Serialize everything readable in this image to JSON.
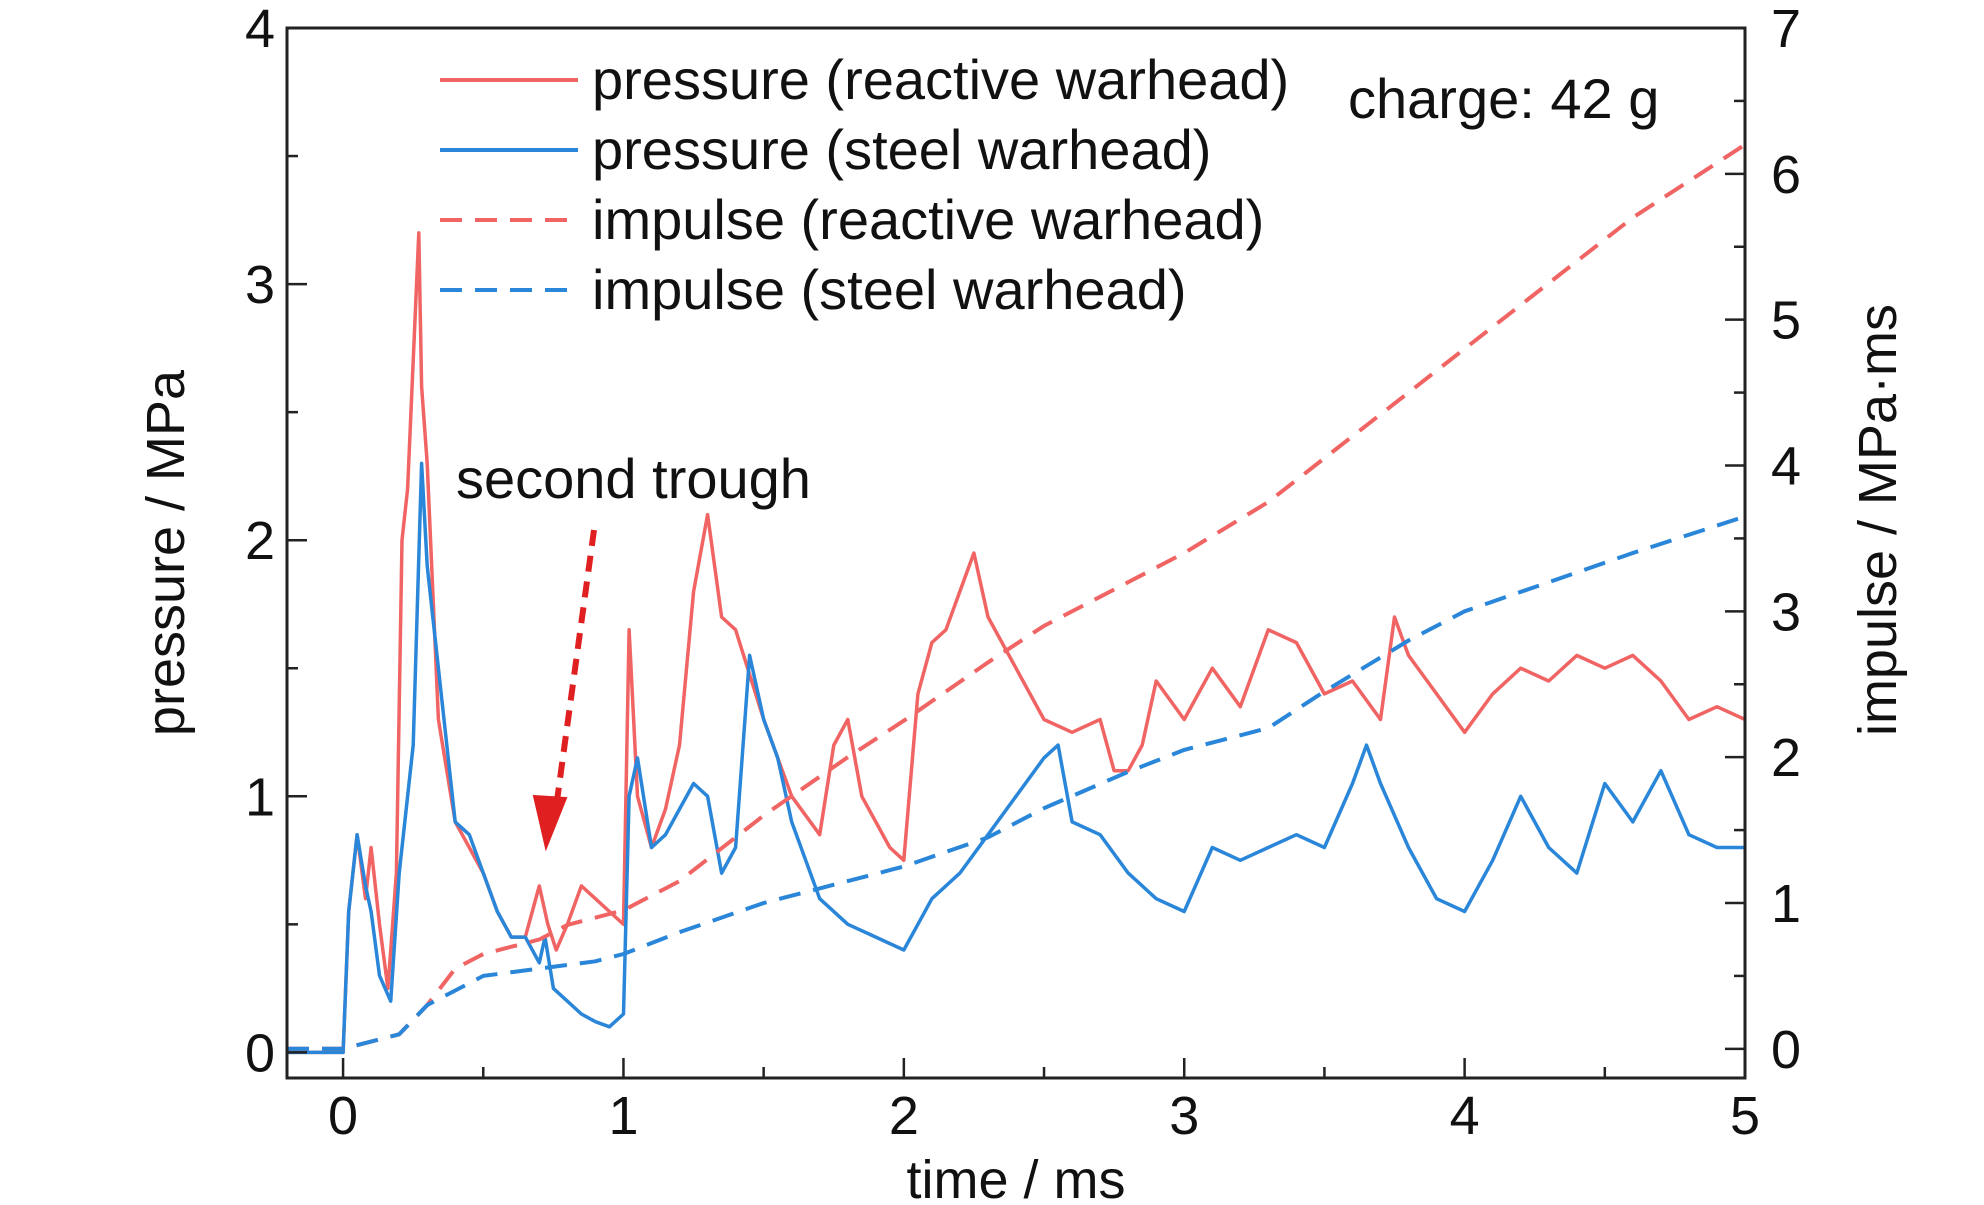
{
  "chart_data": {
    "type": "line",
    "annotation_charge": "charge: 42 g",
    "annotation_trough": "second trough",
    "xlabel": "time / ms",
    "ylabel_left": "pressure / MPa",
    "ylabel_right": "impulse / MPa·ms",
    "xlim": [
      -0.2,
      5
    ],
    "ylim_left": [
      -0.1,
      4
    ],
    "ylim_right": [
      -0.2,
      7
    ],
    "x_ticks": [
      "0",
      "1",
      "2",
      "3",
      "4",
      "5"
    ],
    "y_ticks_left": [
      "0",
      "1",
      "2",
      "3",
      "4"
    ],
    "y_ticks_right": [
      "0",
      "1",
      "2",
      "3",
      "4",
      "5",
      "6",
      "7"
    ],
    "legend": [
      "pressure (reactive warhead)",
      "pressure (steel warhead)",
      "impulse (reactive warhead)",
      "impulse (steel warhead)"
    ],
    "colors": {
      "reactive": "#f06464",
      "steel": "#2a86d8",
      "arrow": "#e02020"
    },
    "series": [
      {
        "name": "pressure (reactive warhead)",
        "axis": "left",
        "style": "solid",
        "x": [
          -0.2,
          0,
          0.02,
          0.05,
          0.08,
          0.1,
          0.13,
          0.16,
          0.19,
          0.21,
          0.23,
          0.25,
          0.27,
          0.28,
          0.3,
          0.32,
          0.34,
          0.37,
          0.4,
          0.45,
          0.5,
          0.55,
          0.6,
          0.65,
          0.7,
          0.73,
          0.76,
          0.8,
          0.85,
          0.9,
          0.95,
          1.0,
          1.02,
          1.05,
          1.1,
          1.15,
          1.2,
          1.25,
          1.3,
          1.35,
          1.4,
          1.5,
          1.6,
          1.7,
          1.75,
          1.8,
          1.85,
          1.9,
          1.95,
          2.0,
          2.05,
          2.1,
          2.15,
          2.2,
          2.25,
          2.3,
          2.4,
          2.5,
          2.6,
          2.7,
          2.75,
          2.8,
          2.85,
          2.9,
          3.0,
          3.1,
          3.2,
          3.3,
          3.4,
          3.5,
          3.6,
          3.7,
          3.75,
          3.8,
          3.9,
          4.0,
          4.1,
          4.2,
          4.3,
          4.4,
          4.5,
          4.6,
          4.7,
          4.8,
          4.9,
          5.0
        ],
        "y": [
          0.0,
          0.0,
          0.55,
          0.85,
          0.6,
          0.8,
          0.5,
          0.25,
          0.7,
          2.0,
          2.2,
          2.7,
          3.2,
          2.6,
          2.3,
          1.8,
          1.3,
          1.1,
          0.9,
          0.8,
          0.7,
          0.55,
          0.45,
          0.45,
          0.65,
          0.5,
          0.4,
          0.5,
          0.65,
          0.6,
          0.55,
          0.5,
          1.65,
          1.0,
          0.8,
          0.95,
          1.2,
          1.8,
          2.1,
          1.7,
          1.65,
          1.3,
          1.0,
          0.85,
          1.2,
          1.3,
          1.0,
          0.9,
          0.8,
          0.75,
          1.4,
          1.6,
          1.65,
          1.8,
          1.95,
          1.7,
          1.5,
          1.3,
          1.25,
          1.3,
          1.1,
          1.1,
          1.2,
          1.45,
          1.3,
          1.5,
          1.35,
          1.65,
          1.6,
          1.4,
          1.45,
          1.3,
          1.7,
          1.55,
          1.4,
          1.25,
          1.4,
          1.5,
          1.45,
          1.55,
          1.5,
          1.55,
          1.45,
          1.3,
          1.35,
          1.3
        ]
      },
      {
        "name": "pressure (steel warhead)",
        "axis": "left",
        "style": "solid",
        "x": [
          -0.2,
          0,
          0.02,
          0.05,
          0.08,
          0.1,
          0.13,
          0.17,
          0.2,
          0.22,
          0.25,
          0.28,
          0.3,
          0.32,
          0.34,
          0.37,
          0.4,
          0.45,
          0.5,
          0.55,
          0.6,
          0.65,
          0.7,
          0.72,
          0.75,
          0.8,
          0.85,
          0.9,
          0.95,
          1.0,
          1.02,
          1.05,
          1.1,
          1.15,
          1.2,
          1.25,
          1.3,
          1.35,
          1.4,
          1.45,
          1.5,
          1.55,
          1.6,
          1.65,
          1.7,
          1.8,
          1.9,
          2.0,
          2.05,
          2.1,
          2.2,
          2.3,
          2.4,
          2.5,
          2.55,
          2.6,
          2.7,
          2.8,
          2.9,
          3.0,
          3.1,
          3.2,
          3.3,
          3.4,
          3.5,
          3.6,
          3.65,
          3.7,
          3.8,
          3.9,
          4.0,
          4.1,
          4.2,
          4.3,
          4.4,
          4.5,
          4.6,
          4.7,
          4.8,
          4.9,
          5.0
        ],
        "y": [
          0.0,
          0.0,
          0.55,
          0.85,
          0.65,
          0.55,
          0.3,
          0.2,
          0.7,
          0.9,
          1.2,
          2.3,
          1.9,
          1.7,
          1.5,
          1.2,
          0.9,
          0.85,
          0.7,
          0.55,
          0.45,
          0.45,
          0.35,
          0.45,
          0.25,
          0.2,
          0.15,
          0.12,
          0.1,
          0.15,
          1.0,
          1.15,
          0.8,
          0.85,
          0.95,
          1.05,
          1.0,
          0.7,
          0.8,
          1.55,
          1.3,
          1.15,
          0.9,
          0.75,
          0.6,
          0.5,
          0.45,
          0.4,
          0.5,
          0.6,
          0.7,
          0.85,
          1.0,
          1.15,
          1.2,
          0.9,
          0.85,
          0.7,
          0.6,
          0.55,
          0.8,
          0.75,
          0.8,
          0.85,
          0.8,
          1.05,
          1.2,
          1.05,
          0.8,
          0.6,
          0.55,
          0.75,
          1.0,
          0.8,
          0.7,
          1.05,
          0.9,
          1.1,
          0.85,
          0.8,
          0.8
        ]
      },
      {
        "name": "impulse (reactive warhead)",
        "axis": "right",
        "style": "dashed",
        "x": [
          -0.2,
          0.0,
          0.2,
          0.3,
          0.4,
          0.5,
          0.7,
          0.8,
          1.0,
          1.2,
          1.5,
          1.8,
          2.0,
          2.3,
          2.5,
          2.7,
          3.0,
          3.3,
          3.5,
          3.8,
          4.0,
          4.3,
          4.6,
          5.0
        ],
        "y": [
          0.0,
          0.0,
          0.1,
          0.3,
          0.55,
          0.65,
          0.75,
          0.85,
          0.95,
          1.15,
          1.6,
          2.0,
          2.25,
          2.65,
          2.9,
          3.1,
          3.4,
          3.75,
          4.05,
          4.5,
          4.8,
          5.25,
          5.7,
          6.2
        ]
      },
      {
        "name": "impulse (steel warhead)",
        "axis": "right",
        "style": "dashed",
        "x": [
          -0.2,
          0.0,
          0.2,
          0.3,
          0.5,
          0.7,
          0.9,
          1.0,
          1.2,
          1.5,
          1.8,
          2.0,
          2.3,
          2.5,
          2.8,
          3.0,
          3.3,
          3.5,
          3.8,
          4.0,
          4.3,
          4.6,
          5.0
        ],
        "y": [
          0.0,
          0.0,
          0.1,
          0.3,
          0.5,
          0.55,
          0.6,
          0.65,
          0.8,
          1.0,
          1.15,
          1.25,
          1.45,
          1.65,
          1.9,
          2.05,
          2.2,
          2.45,
          2.8,
          3.0,
          3.2,
          3.4,
          3.65
        ]
      }
    ]
  }
}
